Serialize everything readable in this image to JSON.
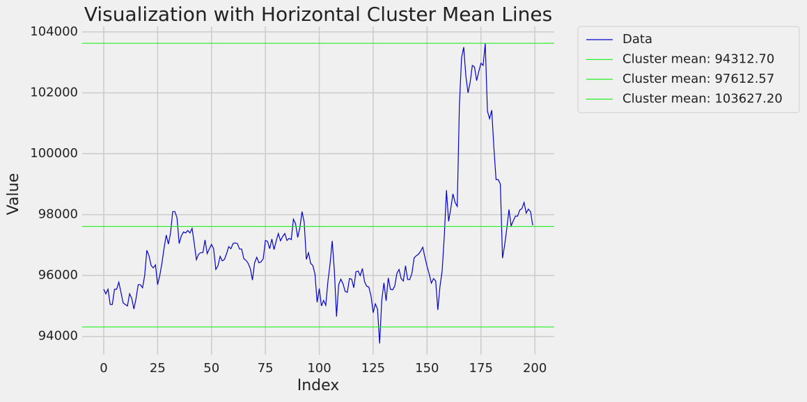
{
  "chart_data": {
    "type": "line",
    "title": "Visualization with Horizontal Cluster Mean Lines",
    "x_label": "Index",
    "y_label": "Value",
    "x": [
      0,
      1,
      2,
      3,
      4,
      5,
      6,
      7,
      8,
      9,
      10,
      11,
      12,
      13,
      14,
      15,
      16,
      17,
      18,
      19,
      20,
      21,
      22,
      23,
      24,
      25,
      26,
      27,
      28,
      29,
      30,
      31,
      32,
      33,
      34,
      35,
      36,
      37,
      38,
      39,
      40,
      41,
      42,
      43,
      44,
      45,
      46,
      47,
      48,
      49,
      50,
      51,
      52,
      53,
      54,
      55,
      56,
      57,
      58,
      59,
      60,
      61,
      62,
      63,
      64,
      65,
      66,
      67,
      68,
      69,
      70,
      71,
      72,
      73,
      74,
      75,
      76,
      77,
      78,
      79,
      80,
      81,
      82,
      83,
      84,
      85,
      86,
      87,
      88,
      89,
      90,
      91,
      92,
      93,
      94,
      95,
      96,
      97,
      98,
      99,
      100,
      101,
      102,
      103,
      104,
      105,
      106,
      107,
      108,
      109,
      110,
      111,
      112,
      113,
      114,
      115,
      116,
      117,
      118,
      119,
      120,
      121,
      122,
      123,
      124,
      125,
      126,
      127,
      128,
      129,
      130,
      131,
      132,
      133,
      134,
      135,
      136,
      137,
      138,
      139,
      140,
      141,
      142,
      143,
      144,
      145,
      146,
      147,
      148,
      149,
      150,
      151,
      152,
      153,
      154,
      155,
      156,
      157,
      158,
      159,
      160,
      161,
      162,
      163,
      164,
      165,
      166,
      167,
      168,
      169,
      170,
      171,
      172,
      173,
      174,
      175,
      176,
      177,
      178,
      179,
      180,
      181,
      182,
      183,
      184,
      185,
      186,
      187,
      188,
      189,
      190,
      191,
      192,
      193,
      194,
      195,
      196,
      197,
      198,
      199
    ],
    "series": [
      {
        "name": "Data",
        "color": "#0000cc",
        "values": [
          95550,
          95400,
          95550,
          95050,
          95050,
          95550,
          95550,
          95780,
          95450,
          95100,
          95050,
          95000,
          95400,
          95250,
          94900,
          95250,
          95700,
          95700,
          95600,
          96000,
          96830,
          96650,
          96330,
          96250,
          96350,
          95700,
          96000,
          96400,
          96900,
          97330,
          97030,
          97400,
          98100,
          98100,
          97900,
          97050,
          97300,
          97430,
          97400,
          97480,
          97400,
          97550,
          97050,
          96520,
          96700,
          96750,
          96750,
          97170,
          96720,
          96880,
          97020,
          96880,
          96200,
          96320,
          96630,
          96480,
          96530,
          96720,
          96950,
          96880,
          97050,
          97070,
          97050,
          96870,
          96870,
          96550,
          96500,
          96400,
          96230,
          95850,
          96420,
          96600,
          96420,
          96450,
          96550,
          97150,
          97120,
          96880,
          97200,
          96850,
          97130,
          97380,
          97140,
          97280,
          97380,
          97150,
          97220,
          97180,
          97850,
          97700,
          97250,
          97580,
          98100,
          97750,
          96530,
          96750,
          96400,
          96330,
          96050,
          95120,
          95570,
          95000,
          95180,
          95020,
          95800,
          96380,
          97140,
          96150,
          94650,
          95700,
          95880,
          95730,
          95480,
          95450,
          95900,
          95880,
          95600,
          96120,
          96150,
          96000,
          96230,
          95800,
          95650,
          95620,
          95330,
          94780,
          95070,
          94900,
          93770,
          95200,
          95760,
          95170,
          95920,
          95550,
          95530,
          95650,
          96070,
          96200,
          95900,
          95820,
          96320,
          95870,
          95870,
          96080,
          96580,
          96650,
          96700,
          96800,
          96930,
          96600,
          96300,
          96050,
          95750,
          95900,
          95820,
          94870,
          95650,
          96150,
          97300,
          98800,
          97780,
          98200,
          98680,
          98400,
          98270,
          101600,
          103150,
          103500,
          102550,
          102000,
          102350,
          102900,
          102850,
          102400,
          102700,
          102970,
          102900,
          103620,
          101400,
          101150,
          101430,
          100200,
          99150,
          99150,
          99000,
          96570,
          97000,
          97550,
          98170,
          97630,
          97800,
          97950,
          97950,
          98150,
          98200,
          98400,
          98050,
          98180,
          98100,
          97650
        ]
      }
    ],
    "hlines": [
      {
        "name": "Cluster mean: 94312.70",
        "color": "#22ee22",
        "value": 94312.7
      },
      {
        "name": "Cluster mean: 97612.57",
        "color": "#22ee22",
        "value": 97612.57
      },
      {
        "name": "Cluster mean: 103627.20",
        "color": "#22ee22",
        "value": 103627.2
      }
    ],
    "xlim": [
      -10,
      209
    ],
    "ylim": [
      93400,
      104180
    ],
    "xticks": [
      0,
      25,
      50,
      75,
      100,
      125,
      150,
      175,
      200
    ],
    "yticks": [
      94000,
      96000,
      98000,
      100000,
      102000,
      104000
    ],
    "grid": true,
    "legend": "outside upper right"
  }
}
